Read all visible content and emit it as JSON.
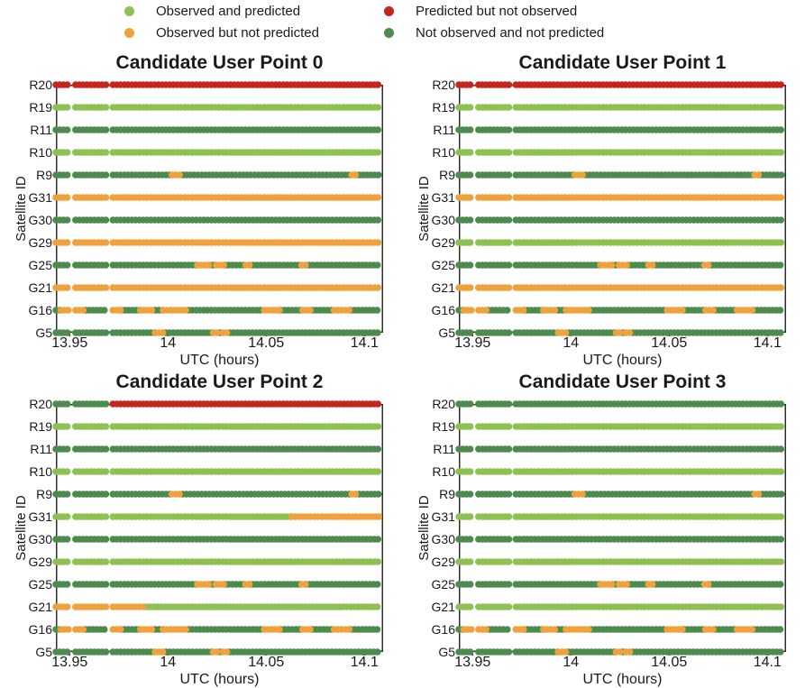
{
  "legend": {
    "items": [
      {
        "label": "Observed and predicted",
        "category": "op"
      },
      {
        "label": "Observed but not predicted",
        "category": "onp"
      },
      {
        "label": "Predicted but not observed",
        "category": "pno"
      },
      {
        "label": "Not observed and not predicted",
        "category": "nn"
      }
    ]
  },
  "chart_data": {
    "type": "scatter",
    "description": "Four dot-timeline plots of satellite visibility category vs UTC time for four candidate user points. Each row of dots is colored by observation/prediction category; segments give [start_utc_hours, end_utc_hours, category].",
    "xlabel": "UTC (hours)",
    "ylabel": "Satellite ID",
    "xlim": [
      13.943,
      14.1095
    ],
    "x_ticks": [
      13.95,
      14,
      14.05,
      14.1
    ],
    "x_tick_labels": [
      "13.95",
      "14",
      "14.05",
      "14.1"
    ],
    "y_categories": [
      "R20",
      "R19",
      "R11",
      "R10",
      "R9",
      "G31",
      "G30",
      "G29",
      "G25",
      "G21",
      "G16",
      "G5"
    ],
    "gap_windows": [
      [
        13.95,
        13.953
      ],
      [
        13.969,
        13.972
      ]
    ],
    "categories": {
      "op": {
        "label": "Observed and predicted",
        "color": "#8DC152"
      },
      "onp": {
        "label": "Observed but not predicted",
        "color": "#EFA23B"
      },
      "pno": {
        "label": "Predicted but not observed",
        "color": "#C4251D"
      },
      "nn": {
        "label": "Not observed and not predicted",
        "color": "#4D8A4D"
      }
    },
    "patterns": {
      "solid_op": [
        [
          13.943,
          13.95,
          "op"
        ],
        [
          13.953,
          13.969,
          "op"
        ],
        [
          13.972,
          14.108,
          "op"
        ]
      ],
      "solid_onp": [
        [
          13.943,
          13.95,
          "onp"
        ],
        [
          13.953,
          13.969,
          "onp"
        ],
        [
          13.972,
          14.108,
          "onp"
        ]
      ],
      "solid_pno": [
        [
          13.943,
          13.95,
          "pno"
        ],
        [
          13.953,
          13.969,
          "pno"
        ],
        [
          13.972,
          14.108,
          "pno"
        ]
      ],
      "solid_nn": [
        [
          13.943,
          13.95,
          "nn"
        ],
        [
          13.953,
          13.969,
          "nn"
        ],
        [
          13.972,
          14.108,
          "nn"
        ]
      ],
      "r9": [
        [
          13.943,
          13.95,
          "nn"
        ],
        [
          13.953,
          13.969,
          "nn"
        ],
        [
          13.972,
          14.002,
          "nn"
        ],
        [
          14.002,
          14.0075,
          "onp"
        ],
        [
          14.0075,
          14.0935,
          "nn"
        ],
        [
          14.0935,
          14.0955,
          "onp"
        ],
        [
          14.0955,
          14.108,
          "nn"
        ]
      ],
      "g25": [
        [
          13.943,
          13.95,
          "nn"
        ],
        [
          13.953,
          13.969,
          "nn"
        ],
        [
          13.972,
          14.015,
          "nn"
        ],
        [
          14.015,
          14.021,
          "onp"
        ],
        [
          14.021,
          14.0245,
          "nn"
        ],
        [
          14.0245,
          14.029,
          "onp"
        ],
        [
          14.029,
          14.0395,
          "nn"
        ],
        [
          14.0395,
          14.0415,
          "onp"
        ],
        [
          14.0415,
          14.068,
          "nn"
        ],
        [
          14.068,
          14.07,
          "onp"
        ],
        [
          14.07,
          14.108,
          "nn"
        ]
      ],
      "g16": [
        [
          13.943,
          13.9455,
          "nn"
        ],
        [
          13.9455,
          13.95,
          "onp"
        ],
        [
          13.953,
          13.958,
          "onp"
        ],
        [
          13.958,
          13.969,
          "nn"
        ],
        [
          13.972,
          13.976,
          "onp"
        ],
        [
          13.976,
          13.986,
          "nn"
        ],
        [
          13.986,
          13.9935,
          "onp"
        ],
        [
          13.9935,
          13.9975,
          "nn"
        ],
        [
          13.9975,
          14.0105,
          "onp"
        ],
        [
          14.0105,
          14.049,
          "nn"
        ],
        [
          14.049,
          14.0575,
          "onp"
        ],
        [
          14.0575,
          14.0685,
          "nn"
        ],
        [
          14.0685,
          14.0735,
          "onp"
        ],
        [
          14.0735,
          14.0845,
          "nn"
        ],
        [
          14.0845,
          14.093,
          "onp"
        ],
        [
          14.093,
          14.108,
          "nn"
        ]
      ],
      "g5": [
        [
          13.943,
          13.95,
          "nn"
        ],
        [
          13.953,
          13.969,
          "nn"
        ],
        [
          13.972,
          13.9935,
          "nn"
        ],
        [
          13.9935,
          13.999,
          "onp"
        ],
        [
          13.999,
          14.023,
          "nn"
        ],
        [
          14.023,
          14.0265,
          "onp"
        ],
        [
          14.0265,
          14.028,
          "nn"
        ],
        [
          14.028,
          14.0315,
          "onp"
        ],
        [
          14.0315,
          14.108,
          "nn"
        ]
      ],
      "r20_point2": [
        [
          13.943,
          13.95,
          "nn"
        ],
        [
          13.953,
          13.969,
          "nn"
        ],
        [
          13.972,
          14.108,
          "pno"
        ]
      ],
      "g31_point2": [
        [
          13.943,
          13.95,
          "op"
        ],
        [
          13.953,
          13.969,
          "op"
        ],
        [
          13.972,
          14.063,
          "op"
        ],
        [
          14.063,
          14.108,
          "onp"
        ]
      ],
      "g21_point2": [
        [
          13.943,
          13.95,
          "onp"
        ],
        [
          13.953,
          13.969,
          "onp"
        ],
        [
          13.972,
          13.989,
          "onp"
        ],
        [
          13.989,
          14.108,
          "op"
        ]
      ]
    },
    "charts": [
      {
        "title": "Candidate User Point 0",
        "rows": [
          {
            "satellite": "R20",
            "pattern": "solid_pno"
          },
          {
            "satellite": "R19",
            "pattern": "solid_op"
          },
          {
            "satellite": "R11",
            "pattern": "solid_nn"
          },
          {
            "satellite": "R10",
            "pattern": "solid_op"
          },
          {
            "satellite": "R9",
            "pattern": "r9"
          },
          {
            "satellite": "G31",
            "pattern": "solid_onp"
          },
          {
            "satellite": "G30",
            "pattern": "solid_nn"
          },
          {
            "satellite": "G29",
            "pattern": "solid_onp"
          },
          {
            "satellite": "G25",
            "pattern": "g25"
          },
          {
            "satellite": "G21",
            "pattern": "solid_onp"
          },
          {
            "satellite": "G16",
            "pattern": "g16"
          },
          {
            "satellite": "G5",
            "pattern": "g5"
          }
        ]
      },
      {
        "title": "Candidate User Point 1",
        "rows": [
          {
            "satellite": "R20",
            "pattern": "solid_pno"
          },
          {
            "satellite": "R19",
            "pattern": "solid_op"
          },
          {
            "satellite": "R11",
            "pattern": "solid_nn"
          },
          {
            "satellite": "R10",
            "pattern": "solid_op"
          },
          {
            "satellite": "R9",
            "pattern": "r9"
          },
          {
            "satellite": "G31",
            "pattern": "solid_onp"
          },
          {
            "satellite": "G30",
            "pattern": "solid_nn"
          },
          {
            "satellite": "G29",
            "pattern": "solid_op"
          },
          {
            "satellite": "G25",
            "pattern": "g25"
          },
          {
            "satellite": "G21",
            "pattern": "solid_onp"
          },
          {
            "satellite": "G16",
            "pattern": "g16"
          },
          {
            "satellite": "G5",
            "pattern": "g5"
          }
        ]
      },
      {
        "title": "Candidate User Point 2",
        "rows": [
          {
            "satellite": "R20",
            "pattern": "r20_point2"
          },
          {
            "satellite": "R19",
            "pattern": "solid_op"
          },
          {
            "satellite": "R11",
            "pattern": "solid_nn"
          },
          {
            "satellite": "R10",
            "pattern": "solid_op"
          },
          {
            "satellite": "R9",
            "pattern": "r9"
          },
          {
            "satellite": "G31",
            "pattern": "g31_point2"
          },
          {
            "satellite": "G30",
            "pattern": "solid_nn"
          },
          {
            "satellite": "G29",
            "pattern": "solid_op"
          },
          {
            "satellite": "G25",
            "pattern": "g25"
          },
          {
            "satellite": "G21",
            "pattern": "g21_point2"
          },
          {
            "satellite": "G16",
            "pattern": "g16"
          },
          {
            "satellite": "G5",
            "pattern": "g5"
          }
        ]
      },
      {
        "title": "Candidate User Point 3",
        "rows": [
          {
            "satellite": "R20",
            "pattern": "solid_nn"
          },
          {
            "satellite": "R19",
            "pattern": "solid_op"
          },
          {
            "satellite": "R11",
            "pattern": "solid_nn"
          },
          {
            "satellite": "R10",
            "pattern": "solid_op"
          },
          {
            "satellite": "R9",
            "pattern": "r9"
          },
          {
            "satellite": "G31",
            "pattern": "solid_op"
          },
          {
            "satellite": "G30",
            "pattern": "solid_nn"
          },
          {
            "satellite": "G29",
            "pattern": "solid_op"
          },
          {
            "satellite": "G25",
            "pattern": "g25"
          },
          {
            "satellite": "G21",
            "pattern": "solid_op"
          },
          {
            "satellite": "G16",
            "pattern": "g16"
          },
          {
            "satellite": "G5",
            "pattern": "g5"
          }
        ]
      }
    ],
    "layout": {
      "grid": "2x2",
      "legend_position": "top",
      "frame": true,
      "grid_lines": false
    }
  }
}
